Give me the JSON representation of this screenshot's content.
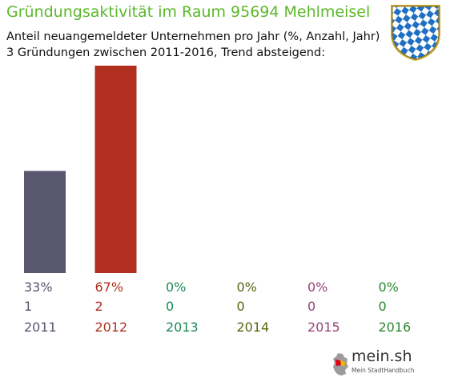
{
  "header": {
    "title": "Gründungsaktivität im Raum 95694 Mehlmeisel",
    "subtitle_line1": "Anteil neuangemeldeter Unternehmen pro Jahr (%, Anzahl, Jahr)",
    "subtitle_line2": "3 Gründungen zwischen 2011-2016, Trend absteigend:"
  },
  "logo": {
    "name": "mein.sh",
    "tagline": "Mein StadtHandbuch",
    "icon": "germany-map-icon"
  },
  "crest": {
    "icon": "bavaria-crest-icon",
    "colors": [
      "#1f6fc4",
      "#ffffff"
    ]
  },
  "chart_data": {
    "type": "bar",
    "categories": [
      "2011",
      "2012",
      "2013",
      "2014",
      "2015",
      "2016"
    ],
    "values": [
      33,
      67,
      0,
      0,
      0,
      0
    ],
    "percent_labels": [
      "33%",
      "67%",
      "0%",
      "0%",
      "0%",
      "0%"
    ],
    "counts": [
      1,
      2,
      0,
      0,
      0,
      0
    ],
    "colors": [
      "#59566f",
      "#b02f1e",
      "#1b8a57",
      "#5b6312",
      "#9a4378",
      "#2a8a2f"
    ],
    "ylim": [
      0,
      67
    ],
    "grid": false,
    "legend": "none"
  }
}
